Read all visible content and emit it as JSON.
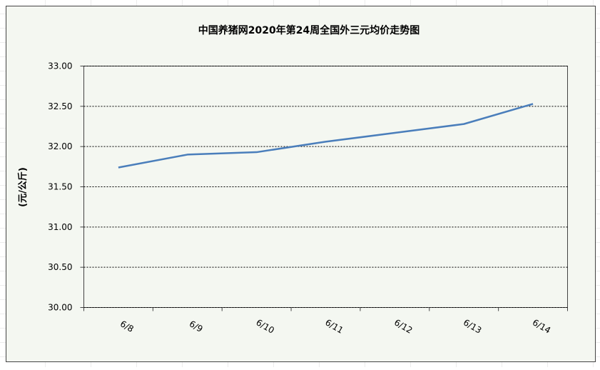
{
  "chart_data": {
    "type": "line",
    "title": "中国养猪网2020年第24周全国外三元均价走势图",
    "y_label": "(元/公斤)",
    "categories": [
      "6/8",
      "6/9",
      "6/10",
      "6/11",
      "6/12",
      "6/13",
      "6/14"
    ],
    "values": [
      31.74,
      31.9,
      31.93,
      32.06,
      32.17,
      32.28,
      32.53
    ],
    "color": "#4a7ebb",
    "ylim": [
      30,
      33
    ],
    "yticks": [
      {
        "value": 30,
        "label": "30.00"
      },
      {
        "value": 30.5,
        "label": "30.50"
      },
      {
        "value": 31,
        "label": "31.00"
      },
      {
        "value": 31.5,
        "label": "31.50"
      },
      {
        "value": 32,
        "label": "32.00"
      },
      {
        "value": 32.5,
        "label": "32.50"
      },
      {
        "value": 33,
        "label": "33.00"
      }
    ],
    "grid": true
  }
}
